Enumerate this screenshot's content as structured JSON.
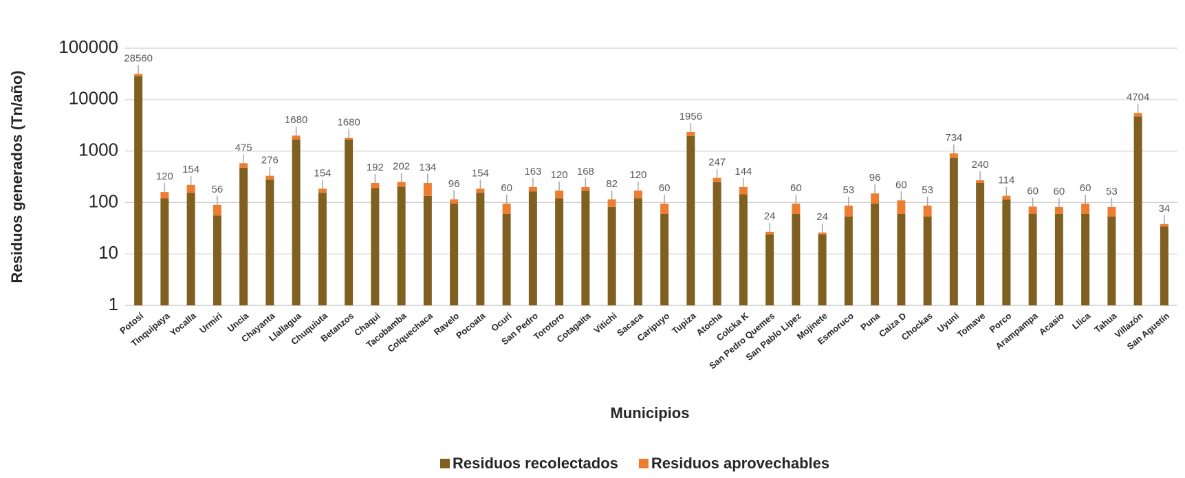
{
  "chart_data": {
    "type": "stacked_bar",
    "y_label": "Residuos generados (Tn/año)",
    "x_label": "Municipios",
    "categories": [
      "Potosí",
      "Tinquipaya",
      "Yocalla",
      "Urmiri",
      "Uncia",
      "Chayanta",
      "Llallagua",
      "Chuquiuta",
      "Betanzos",
      "Chaqui",
      "Tacobamba",
      "Colquechaca",
      "Ravelo",
      "Pocoata",
      "Ocurí",
      "San Pedro",
      "Torotoro",
      "Cotagaita",
      "Vitichi",
      "Sacaca",
      "Caripuyo",
      "Tupiza",
      "Atocha",
      "Colcka K",
      "San Pedro Quemes",
      "San Pablo Lipez",
      "Mojinete",
      "Esmoruco",
      "Puna",
      "Caiza D",
      "Chockas",
      "Uyuni",
      "Tomave",
      "Porco",
      "Arampampa",
      "Acasio",
      "Llica",
      "Tahua",
      "Villazón",
      "San Agustín"
    ],
    "series": [
      {
        "name": "Residuos recolectados",
        "color": "#7f6020",
        "values": [
          28560,
          120,
          154,
          56,
          475,
          276,
          1680,
          154,
          1680,
          192,
          202,
          134,
          96,
          154,
          60,
          163,
          120,
          168,
          82,
          120,
          60,
          1956,
          247,
          144,
          24,
          60,
          24,
          53,
          96,
          60,
          53,
          734,
          240,
          114,
          60,
          60,
          60,
          53,
          4704,
          34
        ]
      },
      {
        "name": "Residuos aprovechables",
        "color": "#ed7d31",
        "values": [
          3000,
          40,
          66,
          34,
          105,
          54,
          320,
          31,
          120,
          48,
          48,
          106,
          19,
          31,
          35,
          37,
          50,
          32,
          33,
          50,
          35,
          394,
          53,
          56,
          3,
          35,
          2,
          34,
          54,
          50,
          34,
          166,
          30,
          21,
          23,
          22,
          35,
          29,
          796,
          4
        ]
      }
    ],
    "log_scale": true,
    "ylim": [
      1,
      100000
    ],
    "yticks": [
      1,
      10,
      100,
      1000,
      10000,
      100000
    ],
    "grid": true,
    "legend": "bottom"
  }
}
